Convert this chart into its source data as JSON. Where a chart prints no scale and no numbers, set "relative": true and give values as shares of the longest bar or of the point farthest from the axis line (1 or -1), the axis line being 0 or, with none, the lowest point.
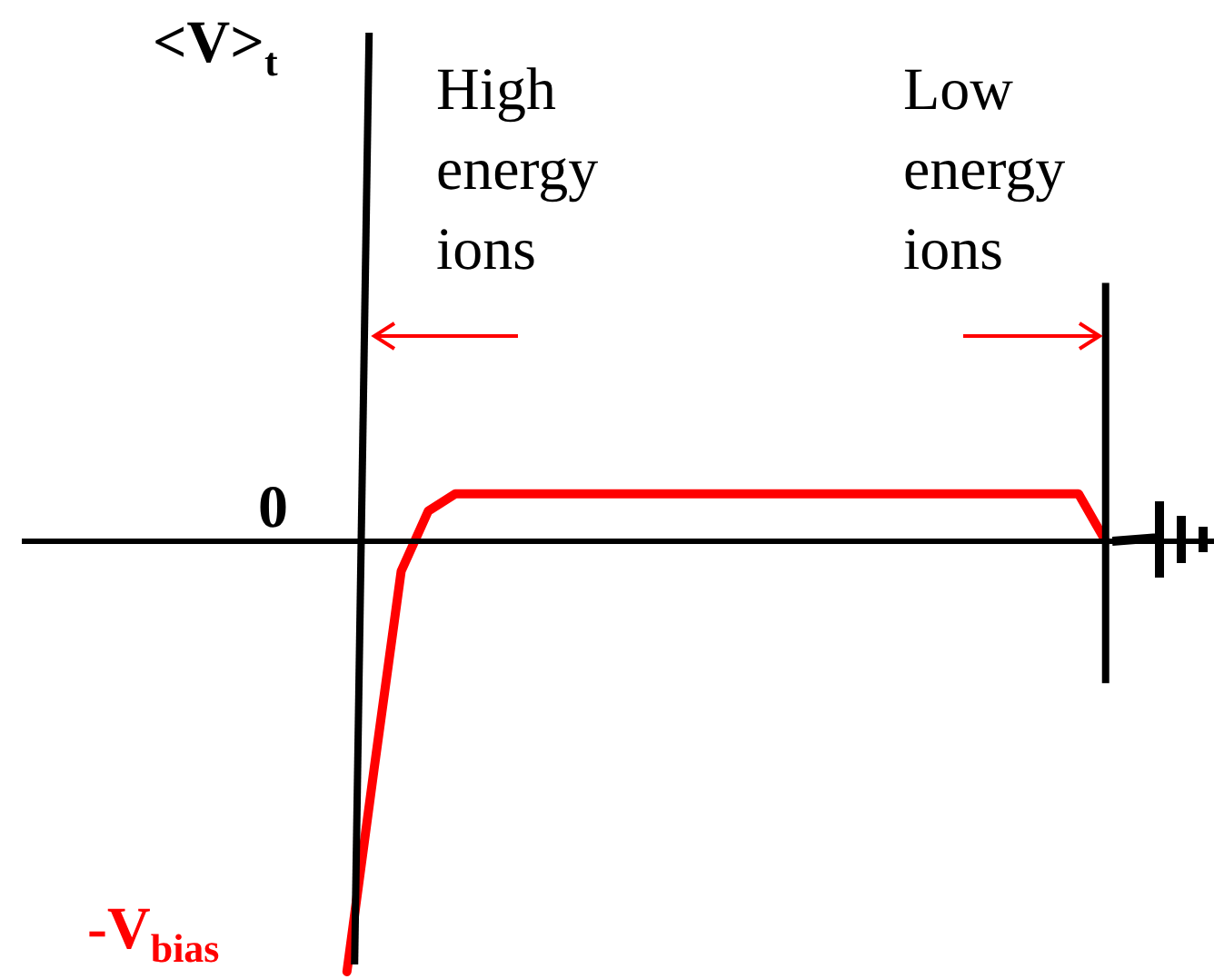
{
  "chart_data": {
    "type": "line",
    "relative": true,
    "annotations": [
      "<V>$_{t}$",
      "0",
      "-V$_{bias}$",
      "High energy ions",
      "Low energy ions"
    ],
    "categories": [
      null,
      null,
      null,
      null,
      null,
      null,
      null,
      null,
      null,
      null,
      null,
      null,
      null,
      null,
      null,
      null,
      null,
      null,
      null,
      null,
      null,
      null,
      null,
      null,
      null,
      null,
      null,
      null,
      null,
      null,
      null,
      null,
      null,
      null,
      null,
      null,
      null,
      null,
      null,
      null,
      null,
      null,
      null,
      null,
      null
    ],
    "series": [
      {
        "color": "#ff0000",
        "values": [
          null,
          null,
          null,
          null,
          null,
          null,
          null,
          null,
          null,
          null,
          null,
          null,
          -1,
          -0.53,
          -0.07,
          0.07,
          0.11,
          0.11,
          0.11,
          0.11,
          0.11,
          0.11,
          0.11,
          0.11,
          0.11,
          0.11,
          0.11,
          0.11,
          0.11,
          0.11,
          0.11,
          0.11,
          0.11,
          0.11,
          0.11,
          0.11,
          0.11,
          0.11,
          0.11,
          0.11,
          0,
          null,
          null,
          null,
          null
        ]
      }
    ]
  }
}
